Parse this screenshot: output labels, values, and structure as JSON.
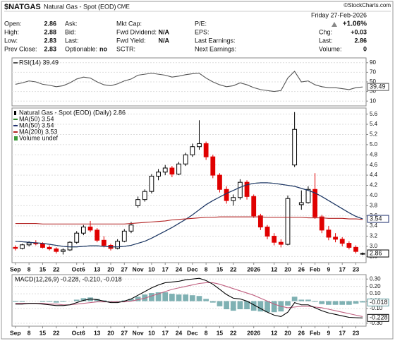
{
  "header": {
    "symbol": "$NATGAS",
    "name": "Natural Gas - Spot (EOD)",
    "exchange": "CME",
    "date": "Friday 27-Feb-2026",
    "change_pct": "+1.06%",
    "copyright": "©StockCharts.com",
    "columns": [
      [
        {
          "label": "Open:",
          "value": "2.86"
        },
        {
          "label": "High:",
          "value": "2.88"
        },
        {
          "label": "Low:",
          "value": "2.83"
        },
        {
          "label": "Prev Close:",
          "value": "2.83"
        }
      ],
      [
        {
          "label": "Ask:"
        },
        {
          "label": "Bid:"
        },
        {
          "label": "Last:"
        },
        {
          "label": "Optionable:",
          "value": "no"
        }
      ],
      [
        {
          "label": "Mkt Cap:"
        },
        {
          "label": "Fwd Dividend:",
          "value": "N/A"
        },
        {
          "label": "Fwd Yield:",
          "value": "N/A"
        },
        {
          "label": "SCTR:"
        }
      ],
      [
        {
          "label": "P/E:"
        },
        {
          "label": "EPS:"
        },
        {
          "label": "Last Earnings:"
        },
        {
          "label": "Next Earnings:"
        }
      ],
      [
        {
          "label": "Chg:",
          "value": "+0.03"
        },
        {
          "label": "Last:",
          "value": "2.86"
        },
        {
          "label": "Volume:",
          "value": "0"
        }
      ]
    ]
  },
  "chart_data": [
    {
      "type": "line",
      "ylim": [
        0,
        100
      ],
      "yticks": [
        10,
        30,
        50,
        70,
        90
      ],
      "grid": true,
      "series": [
        {
          "name": "RSI(14) 39.49",
          "color": "#555555",
          "last_box": true,
          "values": [
            45,
            48,
            52,
            50,
            45,
            43,
            40,
            42,
            48,
            56,
            60,
            58,
            50,
            44,
            42,
            46,
            52,
            56,
            64,
            66,
            68,
            66,
            64,
            60,
            62,
            65,
            67,
            68,
            58,
            50,
            44,
            40,
            42,
            48,
            44,
            38,
            34,
            32,
            30,
            32,
            58,
            72,
            50,
            52,
            44,
            40,
            38,
            38,
            36,
            34,
            38,
            39.49
          ]
        }
      ]
    },
    {
      "type": "candlestick",
      "ylim": [
        2.68,
        5.72
      ],
      "yticks": [
        2.8,
        {
          "value": 3,
          "label": "3.0"
        },
        3.2,
        3.4,
        3.6,
        3.8,
        {
          "value": 4,
          "label": "4.0"
        },
        4.2,
        4.4,
        4.6,
        4.8,
        {
          "value": 5,
          "label": "5.0"
        },
        5.2,
        5.4,
        5.6
      ],
      "grid": true,
      "categories": [
        "Sep",
        null,
        "8",
        null,
        "15",
        null,
        "22",
        null,
        null,
        "Oct",
        "6",
        null,
        "13",
        null,
        "20",
        null,
        "27",
        null,
        "Nov",
        null,
        "10",
        null,
        "17",
        null,
        "24",
        null,
        "Dec",
        null,
        "8",
        null,
        "15",
        null,
        "22",
        null,
        null,
        "2026",
        null,
        null,
        "12",
        null,
        "20",
        null,
        "26",
        null,
        "Feb",
        null,
        "9",
        null,
        "17",
        null,
        "23",
        null
      ],
      "up_color": "#000000",
      "down_color": "#e00000",
      "candles": {
        "name": "Natural Gas - Spot (EOD) (Daily) 2.86",
        "last_box": true,
        "open": [
          2.98,
          2.96,
          3.03,
          3.07,
          3.05,
          2.98,
          2.95,
          2.9,
          2.93,
          3.08,
          3.26,
          3.38,
          3.32,
          3.12,
          3.02,
          2.96,
          3.1,
          3.3,
          3.8,
          3.92,
          4.08,
          4.38,
          4.46,
          4.54,
          4.42,
          4.62,
          4.8,
          4.96,
          5.02,
          4.76,
          4.4,
          4.12,
          3.9,
          3.96,
          4.26,
          3.98,
          3.6,
          3.38,
          3.2,
          3.08,
          3.04,
          4.6,
          3.82,
          3.86,
          4.12,
          3.58,
          3.32,
          3.18,
          3.14,
          3.06,
          2.98,
          2.86
        ],
        "high": [
          3.02,
          3.05,
          3.1,
          3.12,
          3.08,
          3.02,
          2.98,
          2.96,
          3.1,
          3.3,
          3.42,
          3.5,
          3.36,
          3.2,
          3.05,
          3.14,
          3.34,
          3.48,
          3.98,
          4.12,
          4.42,
          4.52,
          4.6,
          4.58,
          4.66,
          4.84,
          5.02,
          5.48,
          5.06,
          4.8,
          4.44,
          4.18,
          4.02,
          4.32,
          4.3,
          4.02,
          3.64,
          3.42,
          3.26,
          3.14,
          4.0,
          5.64,
          4.1,
          4.18,
          4.44,
          3.62,
          3.4,
          3.26,
          3.18,
          3.1,
          3.02,
          2.88
        ],
        "low": [
          2.92,
          2.94,
          3.0,
          3.02,
          2.96,
          2.92,
          2.86,
          2.84,
          2.91,
          3.05,
          3.22,
          3.28,
          3.08,
          2.98,
          2.92,
          2.94,
          3.08,
          3.26,
          3.76,
          3.88,
          4.04,
          4.3,
          4.4,
          4.36,
          4.4,
          4.58,
          4.76,
          4.9,
          4.7,
          4.34,
          4.06,
          3.84,
          3.8,
          3.92,
          3.92,
          3.56,
          3.32,
          3.14,
          3.02,
          2.98,
          3.02,
          4.56,
          3.72,
          3.84,
          3.54,
          3.26,
          3.12,
          3.08,
          3.0,
          2.94,
          2.86,
          2.83
        ],
        "close": [
          2.96,
          3.03,
          3.07,
          3.05,
          2.98,
          2.95,
          2.9,
          2.93,
          3.08,
          3.26,
          3.38,
          3.32,
          3.12,
          3.02,
          2.96,
          3.1,
          3.3,
          3.42,
          3.92,
          4.08,
          4.38,
          4.46,
          4.54,
          4.42,
          4.62,
          4.8,
          4.96,
          5.02,
          4.76,
          4.4,
          4.12,
          3.9,
          3.96,
          4.26,
          3.98,
          3.6,
          3.38,
          3.2,
          3.08,
          3.04,
          3.94,
          5.3,
          3.86,
          4.12,
          3.58,
          3.32,
          3.18,
          3.14,
          3.06,
          2.98,
          2.9,
          2.86
        ]
      },
      "series": [
        {
          "name": "MA(50) 3.54",
          "color": "#2e8b2e",
          "values": [
            3.1,
            3.09,
            3.08,
            3.07,
            3.06,
            3.04,
            3.02,
            3.0,
            2.99,
            2.99,
            3.0,
            3.01,
            3.01,
            3.0,
            2.99,
            2.99,
            3.0,
            3.02,
            3.06,
            3.1,
            3.16,
            3.23,
            3.3,
            3.37,
            3.45,
            3.53,
            3.62,
            3.72,
            3.82,
            3.9,
            3.97,
            4.04,
            4.1,
            4.16,
            4.21,
            4.24,
            4.25,
            4.25,
            4.24,
            4.22,
            4.2,
            4.18,
            4.14,
            4.1,
            4.05,
            3.98,
            3.9,
            3.82,
            3.74,
            3.66,
            3.59,
            3.54
          ]
        },
        {
          "name": "MA(50) 3.54",
          "color": "#1f2f6e",
          "last_box": true,
          "values": [
            3.1,
            3.09,
            3.08,
            3.07,
            3.06,
            3.04,
            3.02,
            3.0,
            2.99,
            2.99,
            3.0,
            3.01,
            3.01,
            3.0,
            2.99,
            2.99,
            3.0,
            3.02,
            3.06,
            3.1,
            3.16,
            3.23,
            3.3,
            3.37,
            3.45,
            3.53,
            3.62,
            3.72,
            3.82,
            3.9,
            3.97,
            4.04,
            4.1,
            4.16,
            4.21,
            4.24,
            4.25,
            4.25,
            4.24,
            4.22,
            4.2,
            4.18,
            4.14,
            4.1,
            4.05,
            3.98,
            3.9,
            3.82,
            3.74,
            3.66,
            3.59,
            3.54
          ]
        },
        {
          "name": "MA(200) 3.53",
          "color": "#b22222",
          "values": [
            3.45,
            3.45,
            3.45,
            3.45,
            3.44,
            3.44,
            3.44,
            3.44,
            3.44,
            3.44,
            3.44,
            3.44,
            3.44,
            3.44,
            3.44,
            3.44,
            3.44,
            3.45,
            3.46,
            3.47,
            3.48,
            3.49,
            3.5,
            3.52,
            3.53,
            3.54,
            3.55,
            3.56,
            3.57,
            3.57,
            3.58,
            3.58,
            3.58,
            3.58,
            3.58,
            3.58,
            3.58,
            3.57,
            3.57,
            3.57,
            3.57,
            3.57,
            3.57,
            3.56,
            3.56,
            3.56,
            3.55,
            3.55,
            3.55,
            3.54,
            3.54,
            3.53
          ]
        }
      ],
      "volume_legend": "Volume undef",
      "volume_color": "#3a9a3a"
    },
    {
      "type": "line",
      "legend": "MACD(12,26,9) -0.228, -0.210, -0.018",
      "ylim": [
        -0.34,
        0.36
      ],
      "yticks": [
        {
          "value": 0.3,
          "label": "0.30"
        },
        {
          "value": 0.2,
          "label": "0.20"
        },
        {
          "value": 0.1,
          "label": "0.10"
        },
        {
          "value": 0,
          "label": "0.00"
        },
        {
          "value": -0.1,
          "label": "-0.10"
        },
        {
          "value": -0.3,
          "label": "-0.30"
        }
      ],
      "grid": true,
      "series": [
        {
          "style": "histogram",
          "color": "#5f9ea0",
          "last_box": true,
          "values": [
            -0.01,
            -0.01,
            0.0,
            0.0,
            -0.01,
            -0.01,
            -0.02,
            -0.01,
            0.0,
            0.02,
            0.04,
            0.05,
            0.03,
            0.01,
            -0.01,
            -0.01,
            0.01,
            0.03,
            0.06,
            0.09,
            0.11,
            0.12,
            0.12,
            0.1,
            0.09,
            0.09,
            0.08,
            0.07,
            0.03,
            -0.02,
            -0.07,
            -0.11,
            -0.13,
            -0.11,
            -0.11,
            -0.13,
            -0.14,
            -0.15,
            -0.15,
            -0.14,
            -0.06,
            0.06,
            0.02,
            0.02,
            -0.01,
            -0.04,
            -0.05,
            -0.05,
            -0.05,
            -0.05,
            -0.035,
            -0.018
          ]
        },
        {
          "style": "line",
          "color": "#c06080",
          "values": [
            -0.03,
            -0.03,
            -0.03,
            -0.03,
            -0.03,
            -0.04,
            -0.04,
            -0.05,
            -0.05,
            -0.04,
            -0.03,
            -0.02,
            -0.01,
            -0.01,
            -0.01,
            -0.01,
            -0.01,
            0.0,
            0.02,
            0.04,
            0.07,
            0.1,
            0.13,
            0.16,
            0.18,
            0.2,
            0.22,
            0.24,
            0.25,
            0.25,
            0.23,
            0.2,
            0.17,
            0.14,
            0.11,
            0.08,
            0.04,
            0.0,
            -0.04,
            -0.07,
            -0.09,
            -0.08,
            -0.07,
            -0.07,
            -0.08,
            -0.09,
            -0.11,
            -0.13,
            -0.15,
            -0.17,
            -0.19,
            -0.21
          ]
        },
        {
          "style": "line",
          "color": "#000000",
          "last_box": true,
          "values": [
            -0.04,
            -0.04,
            -0.03,
            -0.03,
            -0.04,
            -0.05,
            -0.06,
            -0.06,
            -0.05,
            -0.02,
            0.01,
            0.03,
            0.02,
            0.0,
            -0.02,
            -0.02,
            0.0,
            0.03,
            0.08,
            0.13,
            0.18,
            0.22,
            0.25,
            0.26,
            0.27,
            0.29,
            0.3,
            0.31,
            0.28,
            0.23,
            0.16,
            0.09,
            0.04,
            0.03,
            0.0,
            -0.05,
            -0.1,
            -0.15,
            -0.19,
            -0.21,
            -0.15,
            -0.02,
            -0.05,
            -0.05,
            -0.09,
            -0.13,
            -0.16,
            -0.18,
            -0.2,
            -0.22,
            -0.225,
            -0.228
          ]
        }
      ]
    }
  ]
}
